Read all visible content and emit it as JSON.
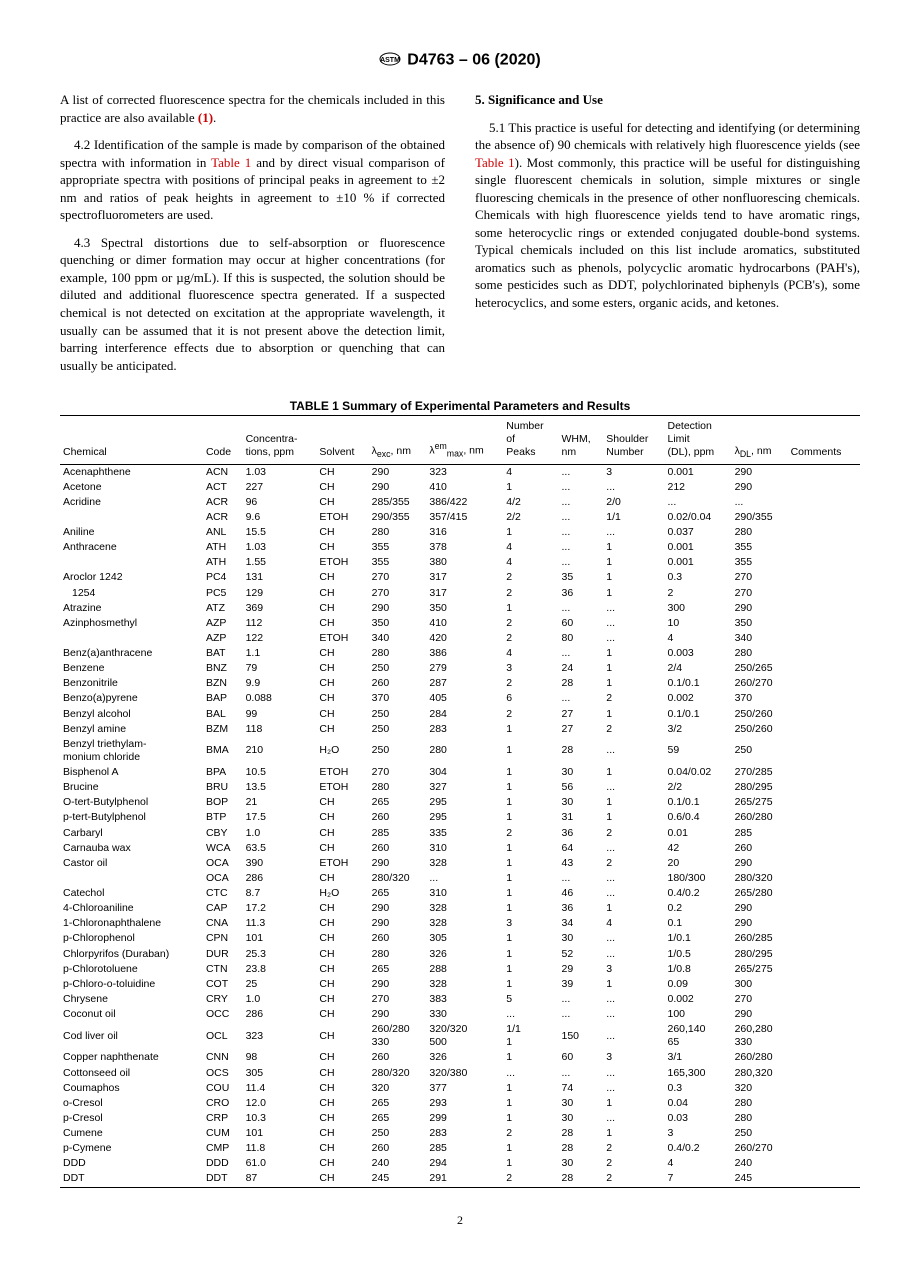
{
  "header": {
    "designation": "D4763 – 06 (2020)"
  },
  "left_column": {
    "p1": "A list of corrected fluorescence spectra for the chemicals included in this practice are also available ",
    "p1_ref": "(1)",
    "p1_end": ".",
    "p2_lead": "4.2 ",
    "p2": "Identification of the sample is made by comparison of the obtained spectra with information in ",
    "p2_link": "Table 1",
    "p2_cont": " and by direct visual comparison of appropriate spectra with positions of principal peaks in agreement to ±2 nm and ratios of peak heights in agreement to ±10 % if corrected spectrofluorometers are used.",
    "p3_lead": "4.3 ",
    "p3": "Spectral distortions due to self-absorption or fluorescence quenching or dimer formation may occur at higher concentrations (for example, 100 ppm or µg/mL). If this is suspected, the solution should be diluted and additional fluorescence spectra generated. If a suspected chemical is not detected on excitation at the appropriate wavelength, it usually can be assumed that it is not present above the detection limit, barring interference effects due to absorption or quenching that can usually be anticipated."
  },
  "right_column": {
    "section": "5. Significance and Use",
    "p1_lead": "5.1 ",
    "p1a": "This practice is useful for detecting and identifying (or determining the absence of) 90 chemicals with relatively high fluorescence yields (see ",
    "p1_link": "Table 1",
    "p1b": "). Most commonly, this practice will be useful for distinguishing single fluorescent chemicals in solution, simple mixtures or single fluorescing chemicals in the presence of other nonfluorescing chemicals. Chemicals with high fluorescence yields tend to have aromatic rings, some heterocyclic rings or extended conjugated double-bond systems. Typical chemicals included on this list include aromatics, substituted aromatics such as phenols, polycyclic aromatic hydrocarbons (PAH's), some pesticides such as DDT, polychlorinated biphenyls (PCB's), some heterocyclics, and some esters, organic acids, and ketones."
  },
  "table": {
    "title": "TABLE 1 Summary of Experimental Parameters and Results",
    "columns": [
      "Chemical",
      "Code",
      "Concentra-\ntions, ppm",
      "Solvent",
      "λ_exc, nm",
      "λ_max^em, nm",
      "Number\nof\nPeaks",
      "WHM,\nnm",
      "Shoulder\nNumber",
      "Detection\nLimit\n(DL), ppm",
      "λ_DL, nm",
      "Comments"
    ],
    "rows": [
      {
        "c": [
          "Acenaphthene",
          "ACN",
          "1.03",
          "CH",
          "290",
          "323",
          "4",
          "...",
          "3",
          "0.001",
          "290",
          ""
        ]
      },
      {
        "c": [
          "Acetone",
          "ACT",
          "227",
          "CH",
          "290",
          "410",
          "1",
          "...",
          "...",
          "212",
          "290",
          ""
        ]
      },
      {
        "c": [
          "Acridine",
          "ACR",
          "96",
          "CH",
          "285/355",
          "386/422",
          "4/2",
          "...",
          "2/0",
          "...",
          "...",
          ""
        ]
      },
      {
        "c": [
          "",
          "ACR",
          "9.6",
          "ETOH",
          "290/355",
          "357/415",
          "2/2",
          "...",
          "1/1",
          "0.02/0.04",
          "290/355",
          ""
        ]
      },
      {
        "c": [
          "Aniline",
          "ANL",
          "15.5",
          "CH",
          "280",
          "316",
          "1",
          "...",
          "...",
          "0.037",
          "280",
          ""
        ]
      },
      {
        "c": [
          "Anthracene",
          "ATH",
          "1.03",
          "CH",
          "355",
          "378",
          "4",
          "...",
          "1",
          "0.001",
          "355",
          ""
        ]
      },
      {
        "c": [
          "",
          "ATH",
          "1.55",
          "ETOH",
          "355",
          "380",
          "4",
          "...",
          "1",
          "0.001",
          "355",
          ""
        ]
      },
      {
        "c": [
          "Aroclor 1242",
          "PC4",
          "131",
          "CH",
          "270",
          "317",
          "2",
          "35",
          "1",
          "0.3",
          "270",
          ""
        ]
      },
      {
        "c": [
          "  1254",
          "PC5",
          "129",
          "CH",
          "270",
          "317",
          "2",
          "36",
          "1",
          "2",
          "270",
          ""
        ],
        "sub": true
      },
      {
        "c": [
          "Atrazine",
          "ATZ",
          "369",
          "CH",
          "290",
          "350",
          "1",
          "...",
          "...",
          "300",
          "290",
          ""
        ]
      },
      {
        "c": [
          "Azinphosmethyl",
          "AZP",
          "112",
          "CH",
          "350",
          "410",
          "2",
          "60",
          "...",
          "10",
          "350",
          ""
        ]
      },
      {
        "c": [
          "",
          "AZP",
          "122",
          "ETOH",
          "340",
          "420",
          "2",
          "80",
          "...",
          "4",
          "340",
          ""
        ]
      },
      {
        "c": [
          "Benz(a)anthracene",
          "BAT",
          "1.1",
          "CH",
          "280",
          "386",
          "4",
          "...",
          "1",
          "0.003",
          "280",
          ""
        ]
      },
      {
        "c": [
          "Benzene",
          "BNZ",
          "79",
          "CH",
          "250",
          "279",
          "3",
          "24",
          "1",
          "2/4",
          "250/265",
          ""
        ]
      },
      {
        "c": [
          "Benzonitrile",
          "BZN",
          "9.9",
          "CH",
          "260",
          "287",
          "2",
          "28",
          "1",
          "0.1/0.1",
          "260/270",
          ""
        ]
      },
      {
        "c": [
          "Benzo(a)pyrene",
          "BAP",
          "0.088",
          "CH",
          "370",
          "405",
          "6",
          "...",
          "2",
          "0.002",
          "370",
          ""
        ]
      },
      {
        "c": [
          "Benzyl alcohol",
          "BAL",
          "99",
          "CH",
          "250",
          "284",
          "2",
          "27",
          "1",
          "0.1/0.1",
          "250/260",
          ""
        ]
      },
      {
        "c": [
          "Benzyl amine",
          "BZM",
          "118",
          "CH",
          "250",
          "283",
          "1",
          "27",
          "2",
          "3/2",
          "250/260",
          ""
        ]
      },
      {
        "c": [
          "Benzyl triethylam-\n  monium chloride",
          "BMA",
          "210",
          "H₂O",
          "250",
          "280",
          "1",
          "28",
          "...",
          "59",
          "250",
          ""
        ]
      },
      {
        "c": [
          "Bisphenol A",
          "BPA",
          "10.5",
          "ETOH",
          "270",
          "304",
          "1",
          "30",
          "1",
          "0.04/0.02",
          "270/285",
          ""
        ]
      },
      {
        "c": [
          "Brucine",
          "BRU",
          "13.5",
          "ETOH",
          "280",
          "327",
          "1",
          "56",
          "...",
          "2/2",
          "280/295",
          ""
        ]
      },
      {
        "c": [
          "O-tert-Butylphenol",
          "BOP",
          "21",
          "CH",
          "265",
          "295",
          "1",
          "30",
          "1",
          "0.1/0.1",
          "265/275",
          ""
        ]
      },
      {
        "c": [
          "p-tert-Butylphenol",
          "BTP",
          "17.5",
          "CH",
          "260",
          "295",
          "1",
          "31",
          "1",
          "0.6/0.4",
          "260/280",
          ""
        ]
      },
      {
        "c": [
          "Carbaryl",
          "CBY",
          "1.0",
          "CH",
          "285",
          "335",
          "2",
          "36",
          "2",
          "0.01",
          "285",
          ""
        ]
      },
      {
        "c": [
          "Carnauba wax",
          "WCA",
          "63.5",
          "CH",
          "260",
          "310",
          "1",
          "64",
          "...",
          "42",
          "260",
          ""
        ]
      },
      {
        "c": [
          "Castor oil",
          "OCA",
          "390",
          "ETOH",
          "290",
          "328",
          "1",
          "43",
          "2",
          "20",
          "290",
          ""
        ]
      },
      {
        "c": [
          "",
          "OCA",
          "286",
          "CH",
          "280/320",
          "...",
          "1",
          "...",
          "...",
          "180/300",
          "280/320",
          ""
        ]
      },
      {
        "c": [
          "Catechol",
          "CTC",
          "8.7",
          "H₂O",
          "265",
          "310",
          "1",
          "46",
          "...",
          "0.4/0.2",
          "265/280",
          ""
        ]
      },
      {
        "c": [
          "4-Chloroaniline",
          "CAP",
          "17.2",
          "CH",
          "290",
          "328",
          "1",
          "36",
          "1",
          "0.2",
          "290",
          ""
        ]
      },
      {
        "c": [
          "1-Chloronaphthalene",
          "CNA",
          "11.3",
          "CH",
          "290",
          "328",
          "3",
          "34",
          "4",
          "0.1",
          "290",
          ""
        ]
      },
      {
        "c": [
          "p-Chlorophenol",
          "CPN",
          "101",
          "CH",
          "260",
          "305",
          "1",
          "30",
          "...",
          "1/0.1",
          "260/285",
          ""
        ]
      },
      {
        "c": [
          "Chlorpyrifos (Duraban)",
          "DUR",
          "25.3",
          "CH",
          "280",
          "326",
          "1",
          "52",
          "...",
          "1/0.5",
          "280/295",
          ""
        ]
      },
      {
        "c": [
          "p-Chlorotoluene",
          "CTN",
          "23.8",
          "CH",
          "265",
          "288",
          "1",
          "29",
          "3",
          "1/0.8",
          "265/275",
          ""
        ]
      },
      {
        "c": [
          "p-Chloro-o-toluidine",
          "COT",
          "25",
          "CH",
          "290",
          "328",
          "1",
          "39",
          "1",
          "0.09",
          "300",
          ""
        ]
      },
      {
        "c": [
          "Chrysene",
          "CRY",
          "1.0",
          "CH",
          "270",
          "383",
          "5",
          "...",
          "...",
          "0.002",
          "270",
          ""
        ]
      },
      {
        "c": [
          "Coconut oil",
          "OCC",
          "286",
          "CH",
          "290",
          "330",
          "...",
          "...",
          "...",
          "100",
          "290",
          ""
        ]
      },
      {
        "c": [
          "Cod liver oil",
          "OCL",
          "323",
          "CH",
          "260/280\n330",
          "320/320\n500",
          "1/1\n1",
          "150",
          "...",
          "260,140\n65",
          "260,280\n330",
          ""
        ]
      },
      {
        "c": [
          "Copper naphthenate",
          "CNN",
          "98",
          "CH",
          "260",
          "326",
          "1",
          "60",
          "3",
          "3/1",
          "260/280",
          ""
        ]
      },
      {
        "c": [
          "Cottonseed oil",
          "OCS",
          "305",
          "CH",
          "280/320",
          "320/380",
          "...",
          "...",
          "...",
          "165,300",
          "280,320",
          ""
        ]
      },
      {
        "c": [
          "Coumaphos",
          "COU",
          "11.4",
          "CH",
          "320",
          "377",
          "1",
          "74",
          "...",
          "0.3",
          "320",
          ""
        ]
      },
      {
        "c": [
          "o-Cresol",
          "CRO",
          "12.0",
          "CH",
          "265",
          "293",
          "1",
          "30",
          "1",
          "0.04",
          "280",
          ""
        ]
      },
      {
        "c": [
          "p-Cresol",
          "CRP",
          "10.3",
          "CH",
          "265",
          "299",
          "1",
          "30",
          "...",
          "0.03",
          "280",
          ""
        ]
      },
      {
        "c": [
          "Cumene",
          "CUM",
          "101",
          "CH",
          "250",
          "283",
          "2",
          "28",
          "1",
          "3",
          "250",
          ""
        ]
      },
      {
        "c": [
          "p-Cymene",
          "CMP",
          "11.8",
          "CH",
          "260",
          "285",
          "1",
          "28",
          "2",
          "0.4/0.2",
          "260/270",
          ""
        ]
      },
      {
        "c": [
          "DDD",
          "DDD",
          "61.0",
          "CH",
          "240",
          "294",
          "1",
          "30",
          "2",
          "4",
          "240",
          ""
        ]
      },
      {
        "c": [
          "DDT",
          "DDT",
          "87",
          "CH",
          "245",
          "291",
          "2",
          "28",
          "2",
          "7",
          "245",
          ""
        ]
      }
    ]
  },
  "page": "2"
}
